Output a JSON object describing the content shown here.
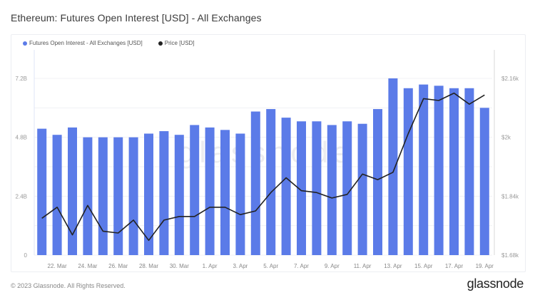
{
  "header": {
    "title": "Ethereum: Futures Open Interest [USD] - All Exchanges"
  },
  "legend": [
    {
      "label": "Futures Open Interest - All Exchanges [USD]",
      "color": "#5b7be8"
    },
    {
      "label": "Price [USD]",
      "color": "#222222"
    }
  ],
  "watermark": "glassnode",
  "footer": {
    "copyright": "© 2023 Glassnode. All Rights Reserved.",
    "logo": "glassnode"
  },
  "chart_data": {
    "type": "bar",
    "title": "Ethereum: Futures Open Interest [USD] - All Exchanges",
    "xlabel": "",
    "ylabel": "Futures Open Interest [USD]",
    "y2label": "Price [USD]",
    "ylim": [
      0,
      7.2
    ],
    "y2lim": [
      1680,
      2160
    ],
    "yticks": [
      "0",
      "2.4B",
      "4.8B",
      "7.2B"
    ],
    "y2ticks": [
      "$1.68k",
      "$1.84k",
      "$2k",
      "$2.16k"
    ],
    "xticks": [
      "22. Mar",
      "24. Mar",
      "26. Mar",
      "28. Mar",
      "30. Mar",
      "1. Apr",
      "3. Apr",
      "5. Apr",
      "7. Apr",
      "9. Apr",
      "11. Apr",
      "13. Apr",
      "15. Apr",
      "17. Apr",
      "19. Apr"
    ],
    "grid": true,
    "legend_position": "top-left",
    "categories": [
      "21. Mar",
      "22. Mar",
      "23. Mar",
      "24. Mar",
      "25. Mar",
      "26. Mar",
      "27. Mar",
      "28. Mar",
      "29. Mar",
      "30. Mar",
      "31. Mar",
      "1. Apr",
      "2. Apr",
      "3. Apr",
      "4. Apr",
      "5. Apr",
      "6. Apr",
      "7. Apr",
      "8. Apr",
      "9. Apr",
      "10. Apr",
      "11. Apr",
      "12. Apr",
      "13. Apr",
      "14. Apr",
      "15. Apr",
      "16. Apr",
      "17. Apr",
      "18. Apr",
      "19. Apr"
    ],
    "series": [
      {
        "name": "Futures Open Interest - All Exchanges [USD]",
        "type": "bar",
        "unit": "B USD",
        "color": "#5b7be8",
        "values": [
          5.15,
          4.9,
          5.2,
          4.8,
          4.8,
          4.8,
          4.8,
          4.95,
          5.05,
          4.9,
          5.3,
          5.2,
          5.1,
          4.95,
          5.85,
          5.95,
          5.6,
          5.45,
          5.45,
          5.3,
          5.45,
          5.35,
          5.95,
          7.2,
          6.8,
          6.95,
          6.9,
          6.8,
          6.8,
          6.0
        ]
      },
      {
        "name": "Price [USD]",
        "type": "line",
        "axis": "right",
        "color": "#222222",
        "values": [
          1780,
          1810,
          1735,
          1815,
          1745,
          1740,
          1775,
          1720,
          1775,
          1785,
          1785,
          1810,
          1810,
          1790,
          1800,
          1850,
          1890,
          1855,
          1850,
          1835,
          1845,
          1900,
          1885,
          1905,
          2010,
          2105,
          2100,
          2120,
          2090,
          2115
        ]
      }
    ]
  }
}
